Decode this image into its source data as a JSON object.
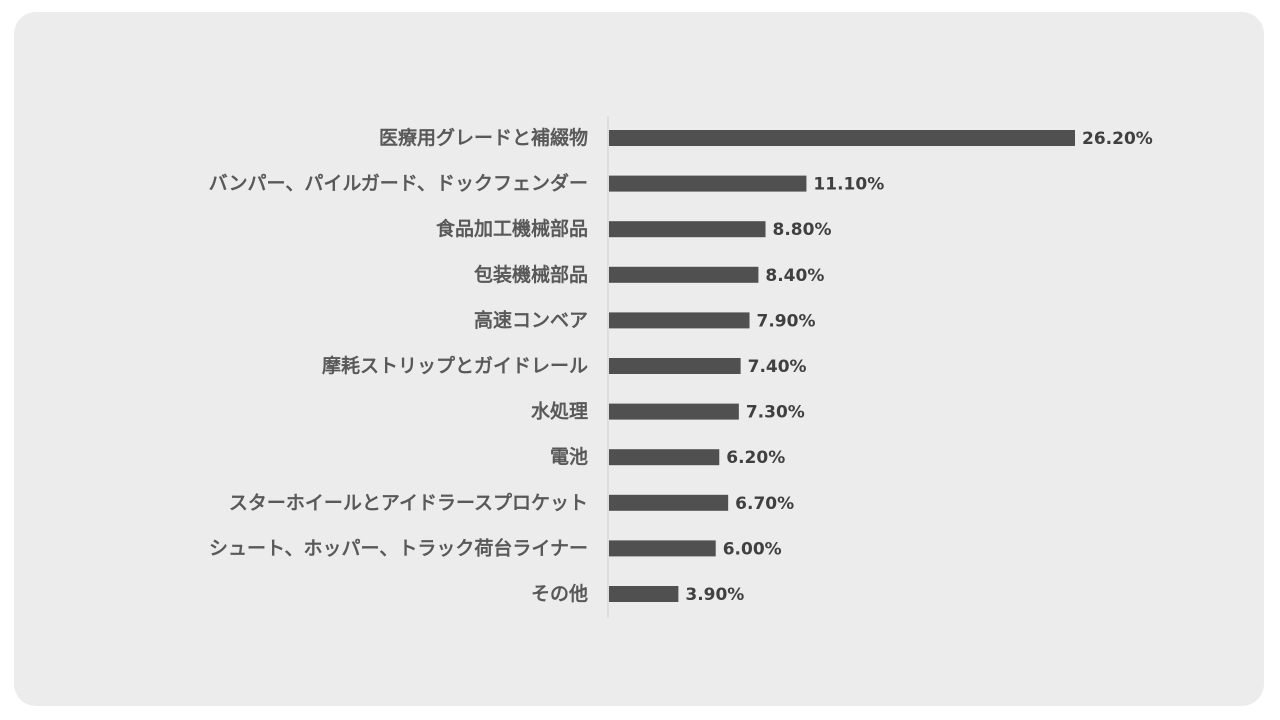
{
  "chart_data": {
    "type": "bar",
    "orientation": "horizontal",
    "categories": [
      "医療用グレードと補綴物",
      "バンパー、パイルガード、ドックフェンダー",
      "食品加工機械部品",
      "包装機械部品",
      "高速コンベア",
      "摩耗ストリップとガイドレール",
      "水処理",
      "電池",
      "スターホイールとアイドラースプロケット",
      "シュート、ホッパー、トラック荷台ライナー",
      "その他"
    ],
    "values": [
      26.2,
      11.1,
      8.8,
      8.4,
      7.9,
      7.4,
      7.3,
      6.2,
      6.7,
      6.0,
      3.9
    ],
    "value_labels": [
      "26.20%",
      "11.10%",
      "8.80%",
      "8.40%",
      "7.90%",
      "7.40%",
      "7.30%",
      "6.20%",
      "6.70%",
      "6.00%",
      "3.90%"
    ],
    "title": "",
    "xlabel": "",
    "ylabel": "",
    "xlim": [
      0,
      30
    ],
    "grid": false,
    "legend": "none",
    "bar_color": "#505050",
    "background_color": "#ececec"
  }
}
